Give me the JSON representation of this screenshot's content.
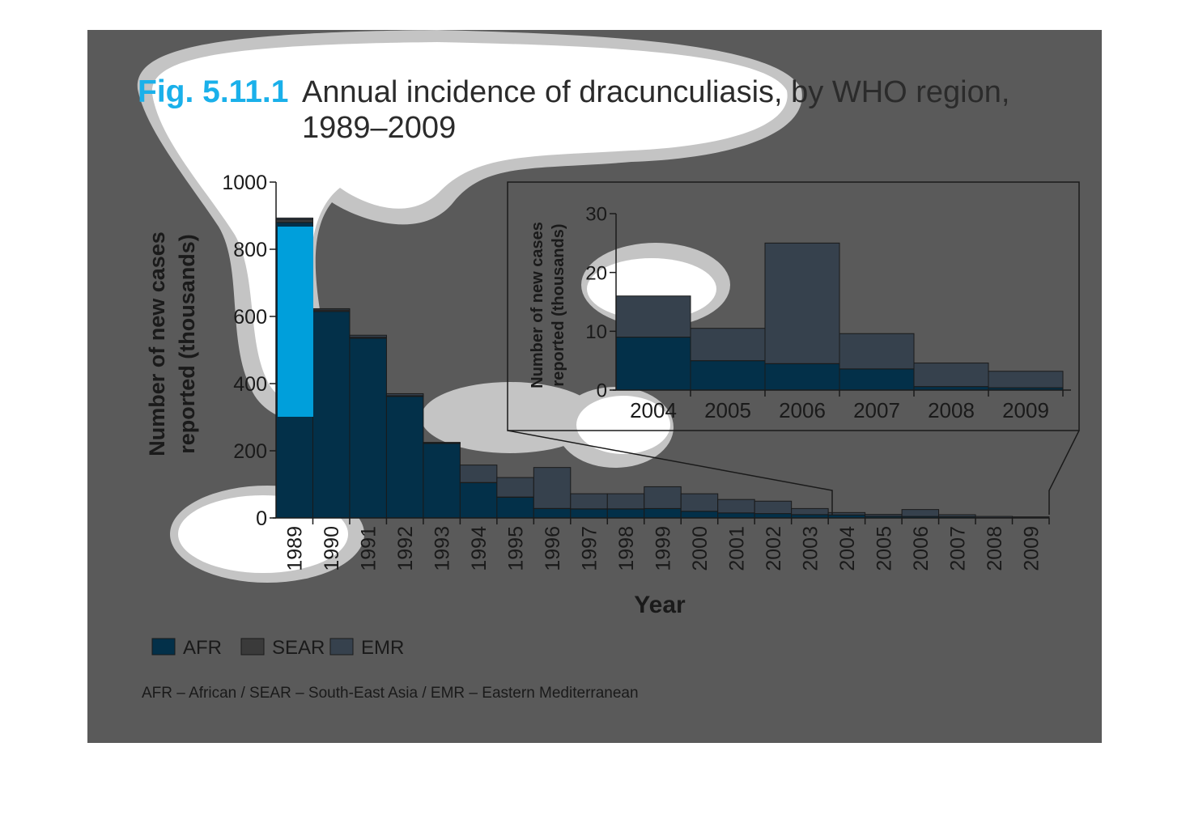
{
  "figure": {
    "label": "Fig. 5.11.1",
    "title_line1": "Annual incidence of dracunculiasis, by WHO region,",
    "title_line2": "1989–2009",
    "footnote": "AFR – African / SEAR – South-East Asia / EMR – Eastern Mediterranean"
  },
  "colors": {
    "background": "#5a5a5a",
    "AFR": "#033049",
    "SEAR": "#3a3a3a",
    "EMR": "#36414d",
    "highlight": "#00b3f5",
    "label_blue": "#1ab0ea",
    "blob": "#ffffff",
    "blob_halo": "#c4c4c4"
  },
  "chart_data": [
    {
      "type": "bar",
      "stacked": true,
      "xlabel": "Year",
      "ylabel_line1": "Number of new cases",
      "ylabel_line2": "reported (thousands)",
      "ylim": [
        0,
        1000
      ],
      "yticks": [
        0,
        200,
        400,
        600,
        800,
        1000
      ],
      "categories": [
        "1989",
        "1990",
        "1991",
        "1992",
        "1993",
        "1994",
        "1995",
        "1996",
        "1997",
        "1998",
        "1999",
        "2000",
        "2001",
        "2002",
        "2003",
        "2004",
        "2005",
        "2006",
        "2007",
        "2008",
        "2009"
      ],
      "series": [
        {
          "name": "AFR",
          "values": [
            880,
            615,
            535,
            362,
            222,
            105,
            62,
            28,
            27,
            27,
            28,
            20,
            15,
            13,
            10,
            9,
            5,
            4.5,
            3.6,
            0.6,
            0.4
          ]
        },
        {
          "name": "SEAR",
          "values": [
            8,
            4,
            3,
            2,
            1,
            0.5,
            0.3,
            0.2,
            0.1,
            0.1,
            0,
            0,
            0,
            0,
            0,
            0,
            0,
            0,
            0,
            0,
            0
          ]
        },
        {
          "name": "EMR",
          "values": [
            5,
            4,
            6,
            6,
            2,
            52,
            58,
            122,
            45,
            45,
            65,
            52,
            40,
            37,
            18,
            7,
            5.5,
            20.5,
            6,
            4,
            2.8
          ]
        }
      ],
      "legend": [
        "AFR",
        "SEAR",
        "EMR"
      ],
      "legend_position": "bottom-left"
    },
    {
      "type": "bar",
      "stacked": true,
      "inset": true,
      "ylabel_line1": "Number of new cases",
      "ylabel_line2": "reported (thousands)",
      "ylim": [
        0,
        30
      ],
      "yticks": [
        0,
        10,
        20,
        30
      ],
      "categories": [
        "2004",
        "2005",
        "2006",
        "2007",
        "2008",
        "2009"
      ],
      "series": [
        {
          "name": "AFR",
          "values": [
            9,
            5,
            4.5,
            3.6,
            0.6,
            0.4
          ]
        },
        {
          "name": "EMR",
          "values": [
            7,
            5.5,
            20.5,
            6,
            4,
            2.8
          ]
        }
      ]
    }
  ]
}
